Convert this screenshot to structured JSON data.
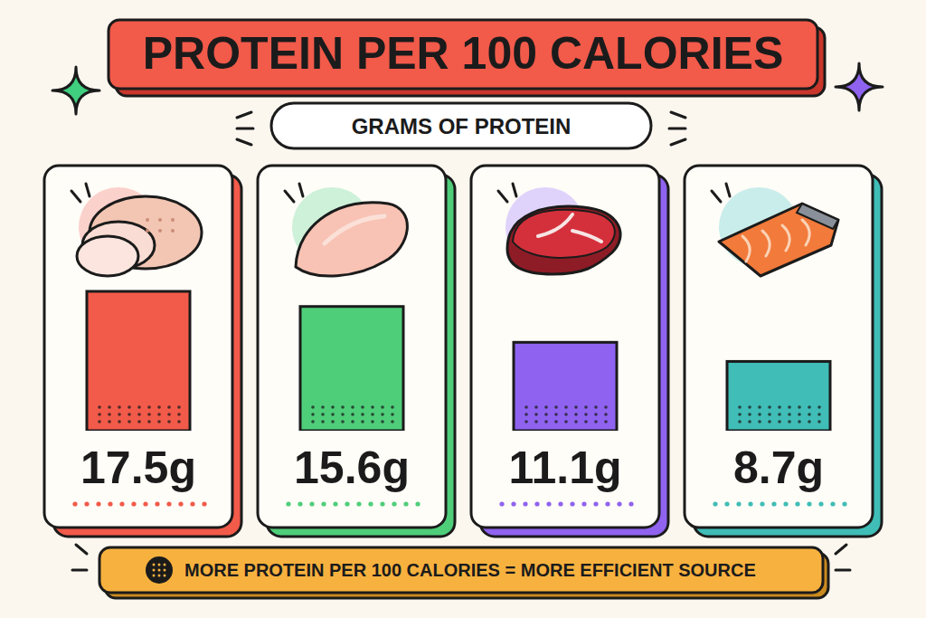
{
  "chart_data": {
    "type": "bar",
    "title": "PROTEIN PER 100 CALORIES",
    "subtitle": "GRAMS OF PROTEIN",
    "categories": [
      null,
      null,
      null,
      null
    ],
    "values": [
      17.5,
      15.6,
      11.1,
      8.7
    ],
    "value_labels": [
      "17.5g",
      "15.6g",
      "11.1g",
      "8.7g"
    ],
    "colors": [
      "#f25a4a",
      "#4fce7a",
      "#8f63f0",
      "#3fbdb6"
    ],
    "ylim": [
      0,
      20
    ],
    "tick_labels": false,
    "data_labels": true,
    "annotations": [
      "MORE PROTEIN PER 100 CALORIES = MORE EFFICIENT SOURCE"
    ]
  }
}
